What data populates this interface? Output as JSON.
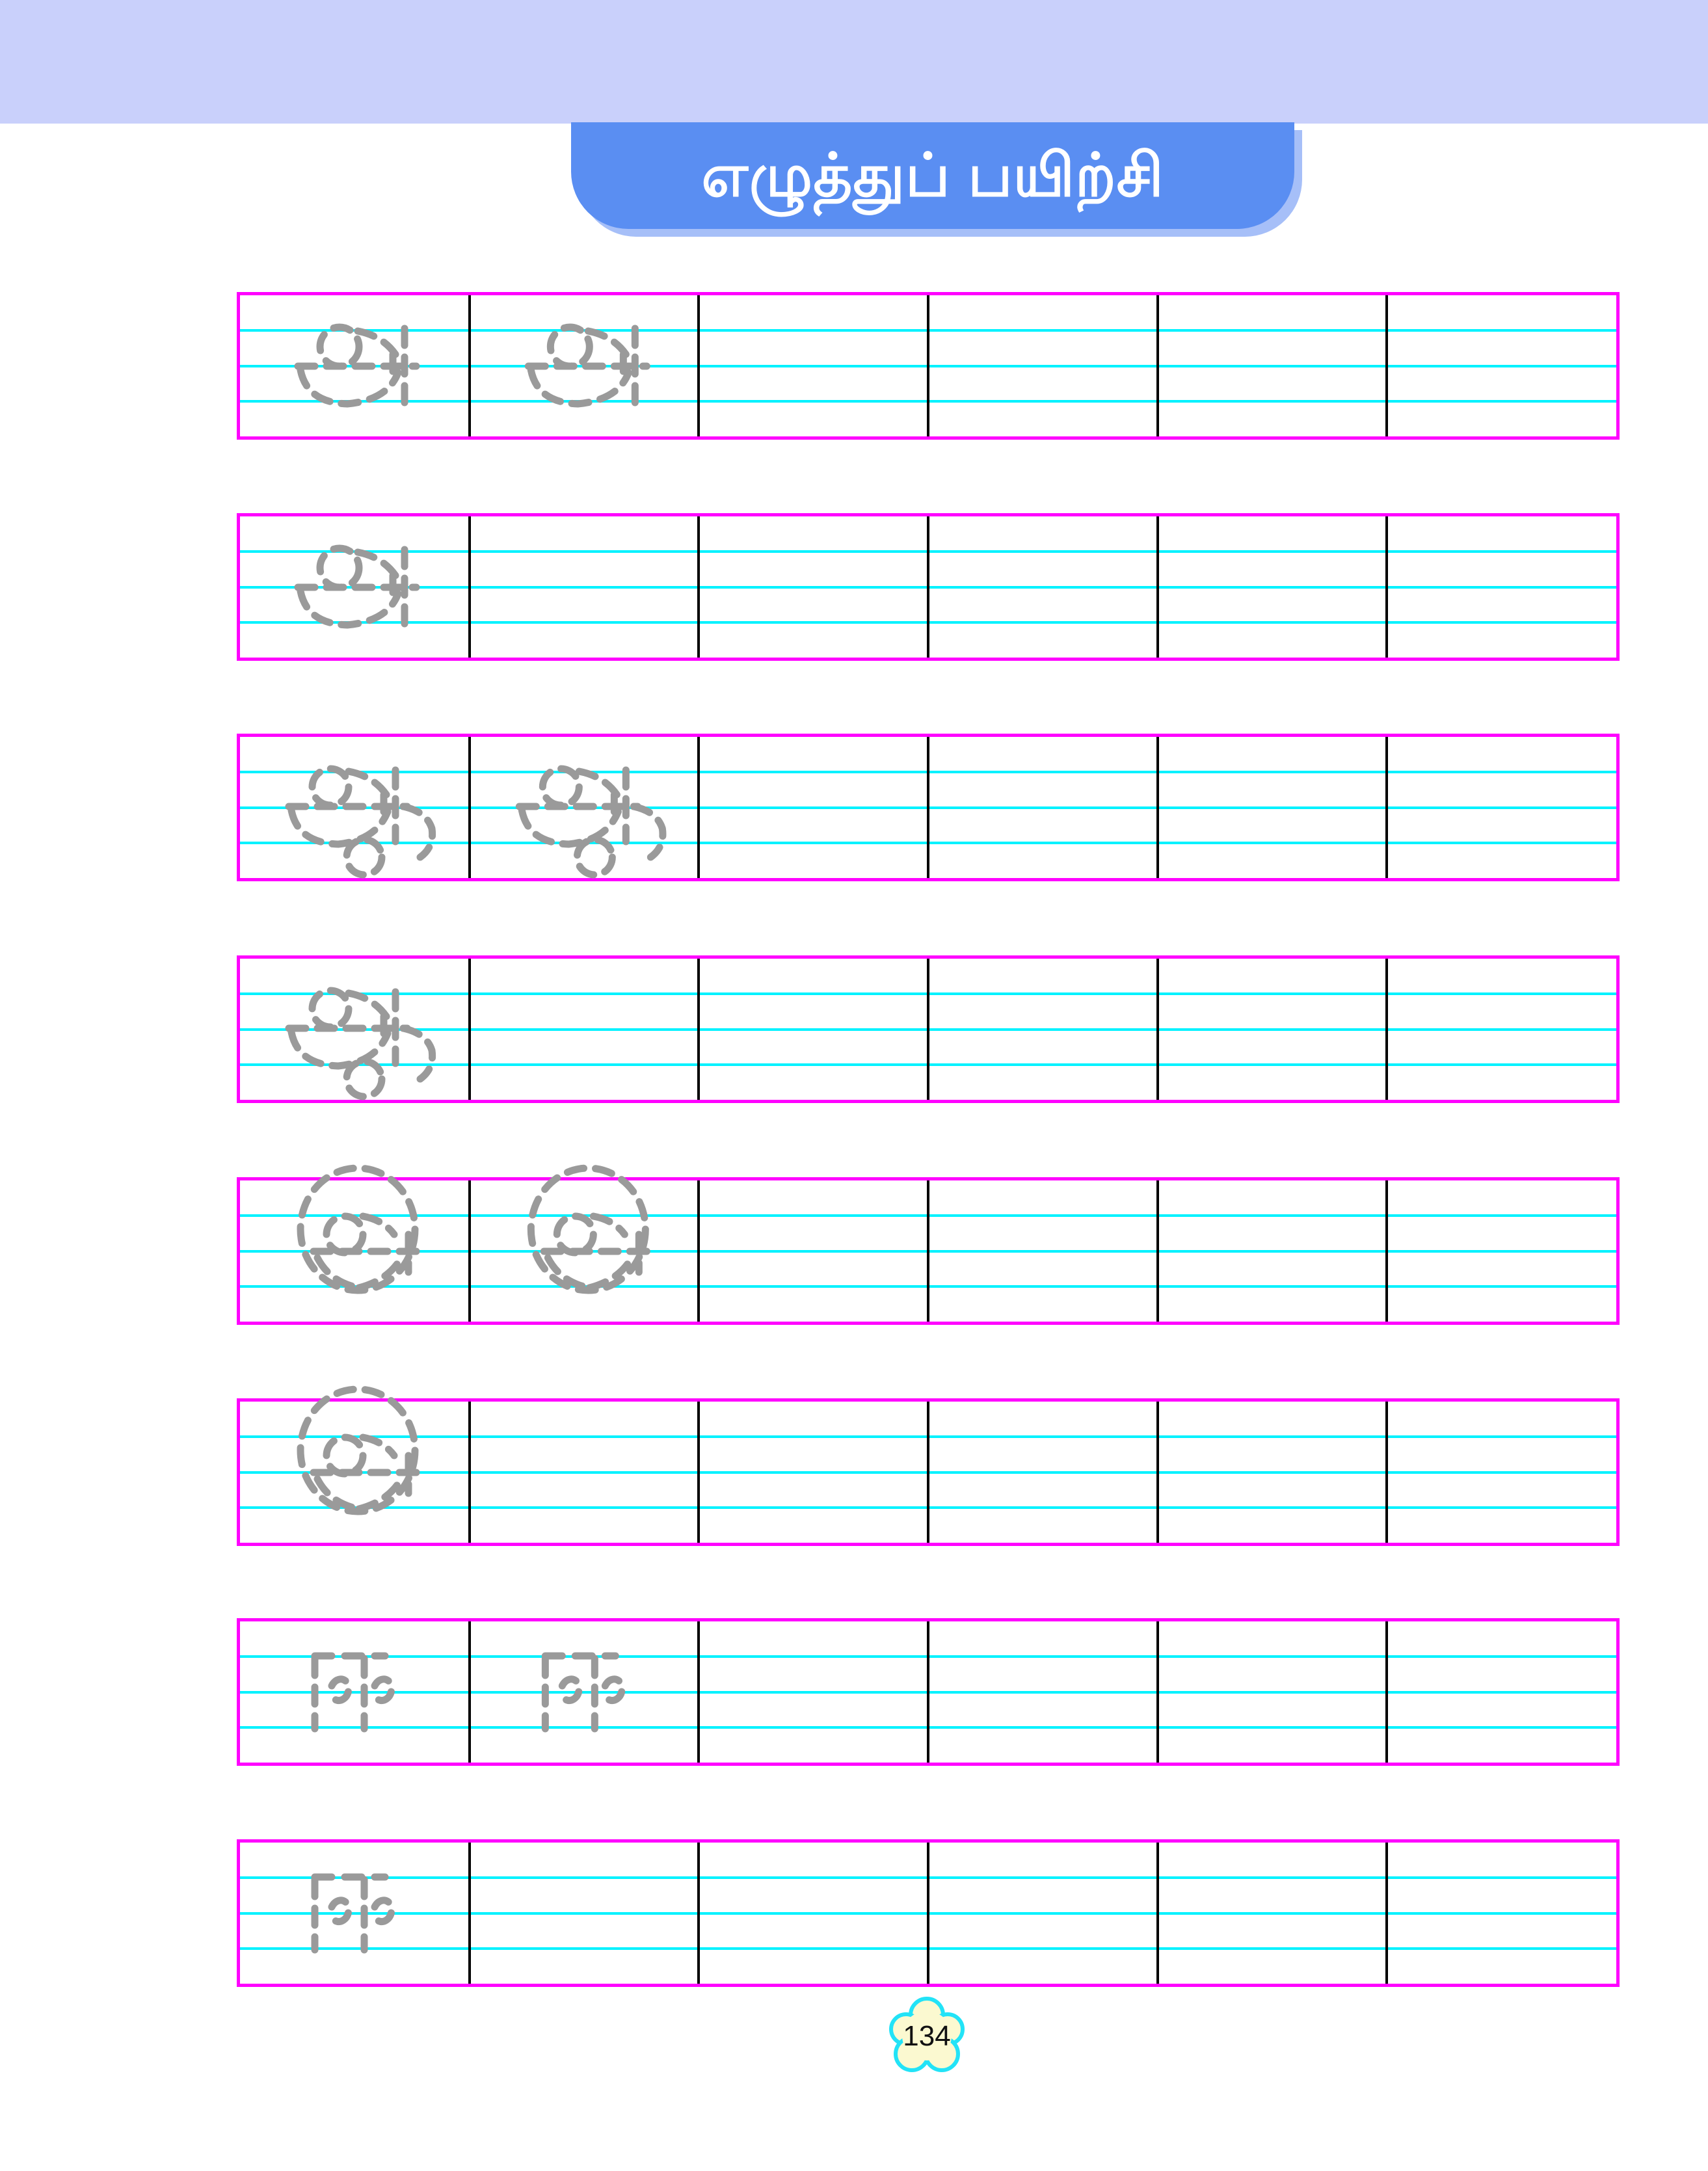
{
  "page": {
    "number": "134"
  },
  "header": {
    "title": "எழுத்துப் பயிற்சி",
    "band_color": "#c9d0fb",
    "banner_color": "#5a8ef2",
    "banner_shadow_color": "#a6bff8",
    "title_color": "#ffffff"
  },
  "grid": {
    "columns": 6,
    "row_count": 8,
    "border_color": "#ff00ff",
    "guide_line_color": "#00f2ff",
    "divider_color": "#000000",
    "trace_color": "#9a9a9a"
  },
  "practice_rows": [
    {
      "letter": "அ",
      "traced_cells": 2
    },
    {
      "letter": "அ",
      "traced_cells": 1
    },
    {
      "letter": "ஆ",
      "traced_cells": 2
    },
    {
      "letter": "ஆ",
      "traced_cells": 1
    },
    {
      "letter": "இ",
      "traced_cells": 2
    },
    {
      "letter": "இ",
      "traced_cells": 1
    },
    {
      "letter": "ஈ",
      "traced_cells": 2
    },
    {
      "letter": "ஈ",
      "traced_cells": 1
    }
  ],
  "badge": {
    "fill_color": "#fbf9d0",
    "border_color": "#22e3f7"
  }
}
